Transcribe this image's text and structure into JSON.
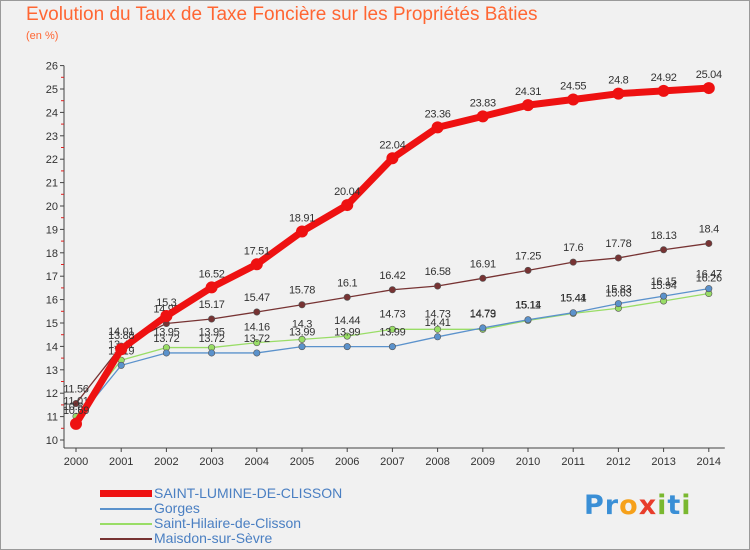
{
  "title": "Evolution du Taux de Taxe Foncière sur les Propriétés Bâties",
  "subtitle": "(en %)",
  "logo": {
    "text": "Proxiti",
    "letters": [
      "P",
      "r",
      "o",
      "x",
      "i",
      "t",
      "i"
    ],
    "colors": [
      "#3a8fd6",
      "#3a8fd6",
      "#f6a11a",
      "#e83d2b",
      "#7ab830",
      "#3a8fd6",
      "#7ab830"
    ]
  },
  "chart_data": {
    "type": "line",
    "title": "Evolution du Taux de Taxe Foncière sur les Propriétés Bâties",
    "ylabel": "(en %)",
    "xlabel": "",
    "ylim": [
      10,
      26
    ],
    "yticks": [
      "10",
      "11",
      "12",
      "13",
      "14",
      "15",
      "16",
      "17",
      "18",
      "19",
      "20",
      "21",
      "22",
      "23",
      "24",
      "25",
      "26"
    ],
    "categories": [
      "2000",
      "2001",
      "2002",
      "2003",
      "2004",
      "2005",
      "2006",
      "2007",
      "2008",
      "2009",
      "2010",
      "2011",
      "2012",
      "2013",
      "2014"
    ],
    "grid": false,
    "legend_position": "bottom-left",
    "series": [
      {
        "name": "SAINT-LUMINE-DE-CLISSON",
        "color": "#ee1111",
        "values": [
          10.69,
          13.88,
          15.3,
          16.52,
          17.51,
          18.91,
          20.04,
          22.04,
          23.36,
          23.83,
          24.31,
          24.55,
          24.8,
          24.92,
          25.04
        ],
        "labels": [
          "10.69",
          "13.88",
          "15.3",
          "16.52",
          "17.51",
          "18.91",
          "20.04",
          "22.04",
          "23.36",
          "23.83",
          "24.31",
          "24.55",
          "24.8",
          "24.92",
          "25.04"
        ]
      },
      {
        "name": "Gorges",
        "color": "#5b92cc",
        "values": [
          10.81,
          13.19,
          13.72,
          13.72,
          13.72,
          13.99,
          13.99,
          13.99,
          14.41,
          14.79,
          15.14,
          15.44,
          15.83,
          16.15,
          16.47
        ],
        "labels": [
          "10.81",
          "13.19",
          "13.72",
          "13.72",
          "13.72",
          "13.99",
          "13.99",
          "13.99",
          "14.41",
          "14.79",
          "15.14",
          "15.44",
          "15.83",
          "16.15",
          "16.47"
        ]
      },
      {
        "name": "Saint-Hilaire-de-Clisson",
        "color": "#99dd66",
        "values": [
          11.01,
          13.41,
          13.95,
          13.95,
          14.16,
          14.3,
          14.44,
          14.73,
          14.73,
          14.73,
          15.11,
          15.41,
          15.63,
          15.94,
          16.26
        ],
        "labels": [
          "11.01",
          "13.41",
          "13.95",
          "13.95",
          "14.16",
          "14.3",
          "14.44",
          "14.73",
          "14.73",
          "14.73",
          "15.11",
          "15.41",
          "15.63",
          "15.94",
          "16.26"
        ]
      },
      {
        "name": "Maisdon-sur-Sèvre",
        "color": "#773333",
        "values": [
          11.56,
          14.01,
          14.98,
          15.17,
          15.47,
          15.78,
          16.1,
          16.42,
          16.58,
          16.91,
          17.25,
          17.6,
          17.78,
          18.13,
          18.4
        ],
        "labels": [
          "11.56",
          "14.01",
          "14.98",
          "15.17",
          "15.47",
          "15.78",
          "16.1",
          "16.42",
          "16.58",
          "16.91",
          "17.25",
          "17.6",
          "17.78",
          "18.13",
          "18.4"
        ]
      }
    ]
  }
}
